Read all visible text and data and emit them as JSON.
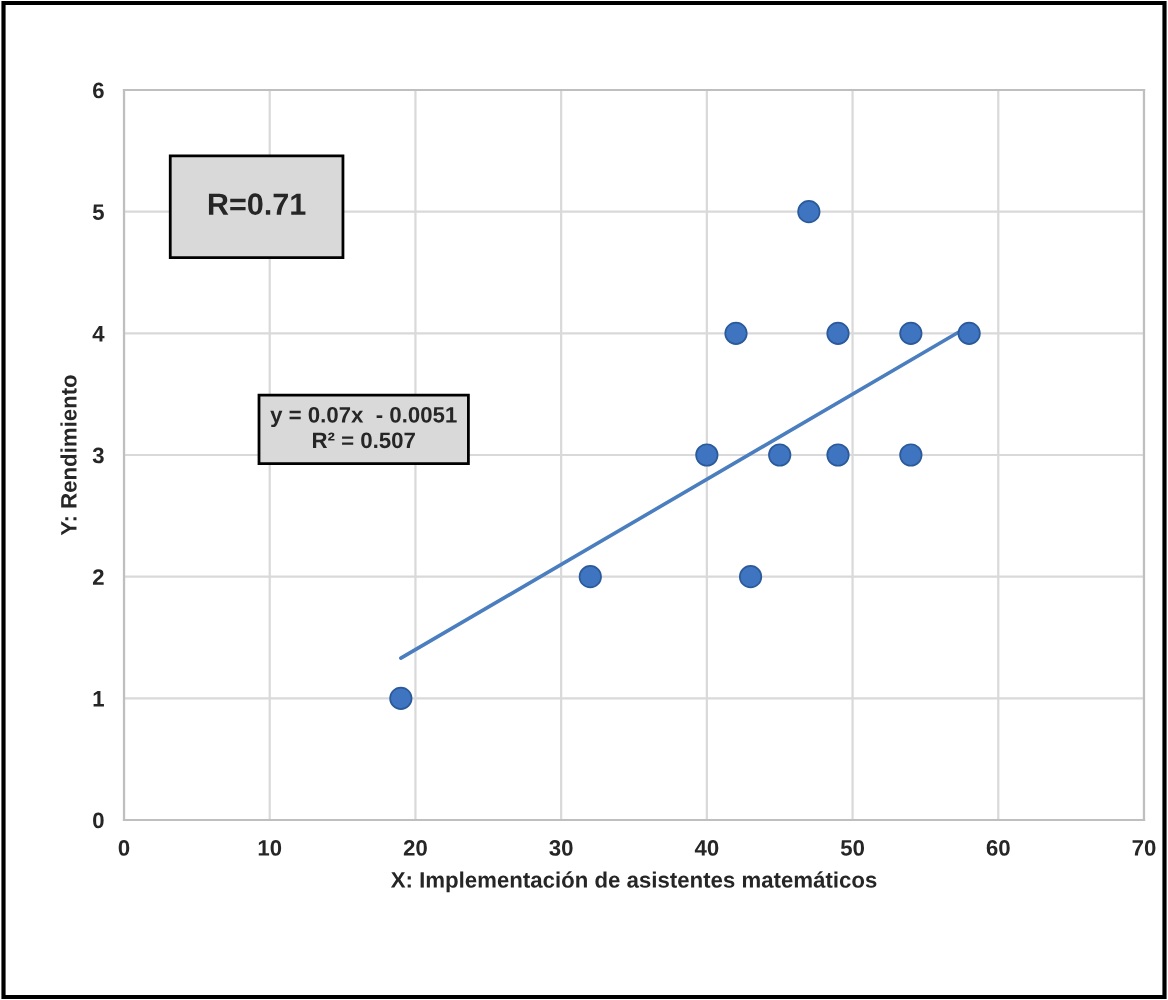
{
  "chart_data": {
    "type": "scatter",
    "xlabel": "X: Implementación de asistentes matemáticos",
    "ylabel": "Y: Rendimiento",
    "xlim": [
      0,
      70
    ],
    "xticks": [
      0,
      10,
      20,
      30,
      40,
      50,
      60,
      70
    ],
    "ylim": [
      0,
      6
    ],
    "yticks": [
      0,
      1,
      2,
      3,
      4,
      5,
      6
    ],
    "grid": true,
    "series": [
      {
        "marker": "circle",
        "color": "#3f74c0",
        "x": [
          19,
          32,
          43,
          40,
          45,
          49,
          54,
          42,
          49,
          54,
          58,
          47
        ],
        "values": [
          1,
          2,
          2,
          3,
          3,
          3,
          3,
          4,
          4,
          4,
          4,
          5
        ]
      },
      {
        "type": "line",
        "marker": "none",
        "color": "#4a7ebf",
        "x": [
          19,
          58
        ],
        "values": [
          1.33,
          4.06
        ]
      }
    ],
    "annotations": [
      "R=0.71",
      "y = 0.07x  - 0.0051\nR² = 0.507"
    ]
  }
}
